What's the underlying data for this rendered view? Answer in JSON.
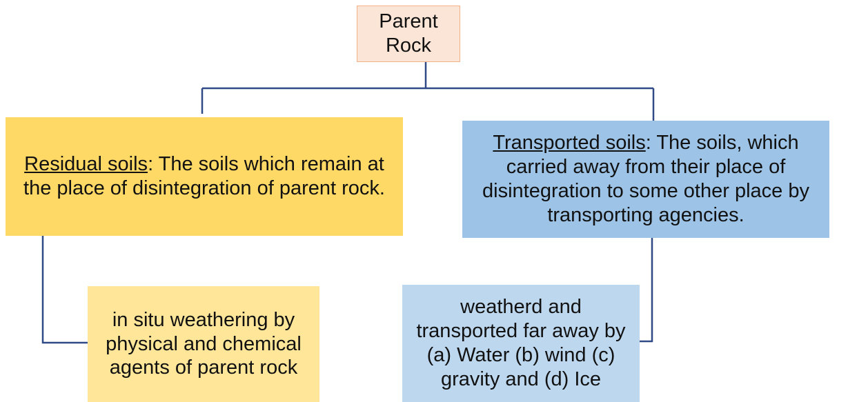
{
  "nodes": [
    {
      "label": "Parent Rock"
    },
    {
      "term": "Residual soils",
      "label": ": The soils which remain at the place of disintegration of parent rock."
    },
    {
      "term": "Transported soils",
      "label": ": The soils, which carried away from their place of disintegration to some other place by transporting agencies."
    },
    {
      "label": "in situ weathering by physical and chemical agents of parent rock"
    },
    {
      "label": "weatherd and transported far away by (a) Water (b) wind (c) gravity and (d) Ice"
    }
  ]
}
